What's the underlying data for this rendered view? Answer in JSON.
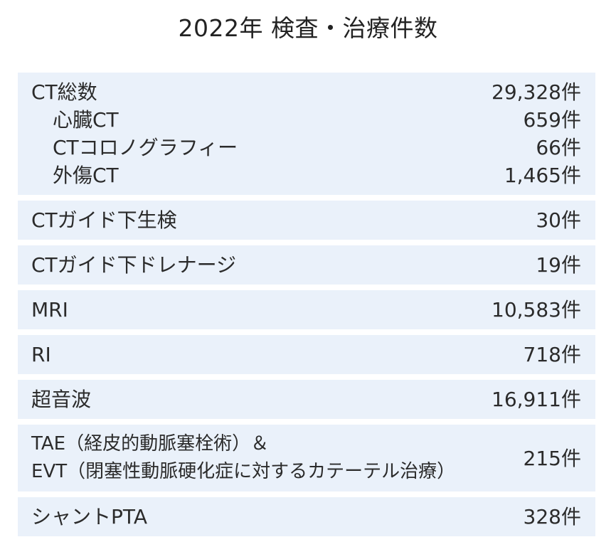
{
  "title": "2022年 検査・治療件数",
  "rows": {
    "ct_total": {
      "label": "CT総数",
      "value": "29,328件"
    },
    "ct_cardiac": {
      "label": "心臓CT",
      "value": "659件"
    },
    "ct_colonography": {
      "label": "CTコロノグラフィー",
      "value": "66件"
    },
    "ct_trauma": {
      "label": "外傷CT",
      "value": "1,465件"
    },
    "ct_biopsy": {
      "label": "CTガイド下生検",
      "value": "30件"
    },
    "ct_drainage": {
      "label": "CTガイド下ドレナージ",
      "value": "19件"
    },
    "mri": {
      "label": "MRI",
      "value": "10,583件"
    },
    "ri": {
      "label": "RI",
      "value": "718件"
    },
    "ultrasound": {
      "label": "超音波",
      "value": "16,911件"
    },
    "tae_evt": {
      "label_line1": "TAE（経皮的動脈塞栓術）＆",
      "label_line2": "EVT（閉塞性動脈硬化症に対するカテーテル治療）",
      "value": "215件"
    },
    "shunt_pta": {
      "label": "シャントPTA",
      "value": "328件"
    }
  },
  "colors": {
    "row_background": "#eaf1fa",
    "text": "#2b2b2b"
  }
}
